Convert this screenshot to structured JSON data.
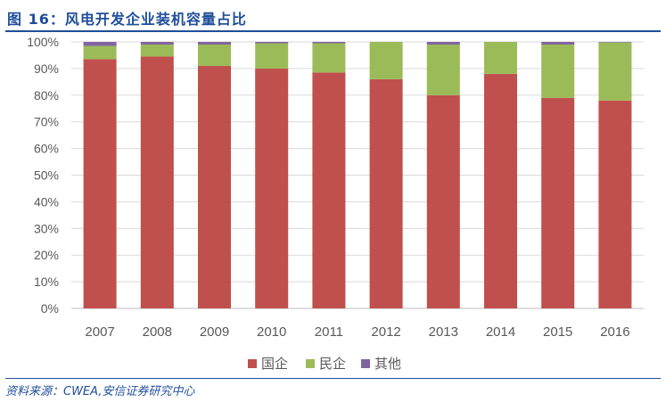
{
  "figure": {
    "label": "图 16：风电开发企业装机容量占比",
    "source": "资料来源：CWEA,安信证券研究中心"
  },
  "colors": {
    "title": "#1f4e9a",
    "state_owned": "#c0504d",
    "private": "#9bbb59",
    "other": "#8064a2"
  },
  "chart_data": {
    "type": "bar",
    "stacked": true,
    "title": "",
    "xlabel": "",
    "ylabel": "",
    "ylim": [
      0,
      100
    ],
    "y_tick_labels": [
      "0%",
      "10%",
      "20%",
      "30%",
      "40%",
      "50%",
      "60%",
      "70%",
      "80%",
      "90%",
      "100%"
    ],
    "grid": true,
    "legend_position": "bottom",
    "categories": [
      "2007",
      "2008",
      "2009",
      "2010",
      "2011",
      "2012",
      "2013",
      "2014",
      "2015",
      "2016"
    ],
    "series": [
      {
        "name": "国企",
        "color": "#c0504d",
        "values": [
          93.5,
          94.5,
          91,
          90,
          88.5,
          86,
          80,
          88,
          79,
          78
        ]
      },
      {
        "name": "民企",
        "color": "#9bbb59",
        "values": [
          5,
          4.5,
          8,
          9.5,
          11,
          14,
          19,
          12,
          20,
          21.8
        ]
      },
      {
        "name": "其他",
        "color": "#8064a2",
        "values": [
          1.5,
          1,
          1,
          0.5,
          0.5,
          0,
          1,
          0,
          1,
          0.2
        ]
      }
    ]
  }
}
